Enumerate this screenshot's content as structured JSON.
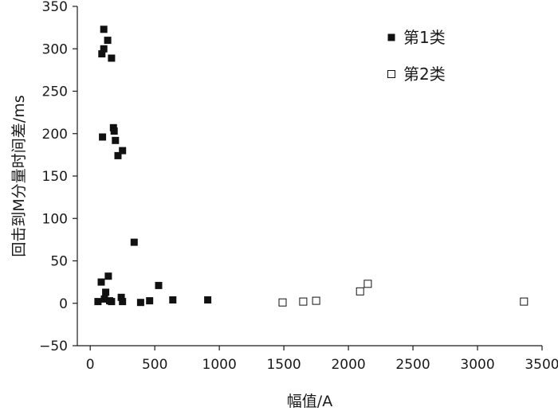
{
  "chart_data": {
    "type": "scatter",
    "title": "",
    "xlabel": "幅值/A",
    "ylabel": "回击到M分量时间差/ms",
    "xlim": [
      -100,
      3500
    ],
    "ylim": [
      -50,
      350
    ],
    "xticks": [
      0,
      500,
      1000,
      1500,
      2000,
      2500,
      3000,
      3500
    ],
    "yticks": [
      -50,
      0,
      50,
      100,
      150,
      200,
      250,
      300,
      350
    ],
    "grid": false,
    "legend": "top-right",
    "series": [
      {
        "name": "第1类",
        "marker": "filled-square",
        "color": "#111111",
        "points": [
          [
            105,
            323
          ],
          [
            135,
            310
          ],
          [
            105,
            300
          ],
          [
            90,
            294
          ],
          [
            165,
            289
          ],
          [
            180,
            207
          ],
          [
            185,
            203
          ],
          [
            95,
            196
          ],
          [
            195,
            192
          ],
          [
            250,
            180
          ],
          [
            215,
            174
          ],
          [
            340,
            72
          ],
          [
            140,
            32
          ],
          [
            530,
            21
          ],
          [
            85,
            25
          ],
          [
            120,
            13
          ],
          [
            240,
            7
          ],
          [
            60,
            2
          ],
          [
            110,
            5
          ],
          [
            150,
            3
          ],
          [
            165,
            2
          ],
          [
            250,
            2
          ],
          [
            390,
            1
          ],
          [
            460,
            3
          ],
          [
            640,
            4
          ],
          [
            910,
            4
          ]
        ]
      },
      {
        "name": "第2类",
        "marker": "hollow-square",
        "color": "#111111",
        "points": [
          [
            1490,
            1
          ],
          [
            1650,
            2
          ],
          [
            1750,
            3
          ],
          [
            2090,
            14
          ],
          [
            2150,
            23
          ],
          [
            3360,
            2
          ]
        ]
      }
    ]
  }
}
